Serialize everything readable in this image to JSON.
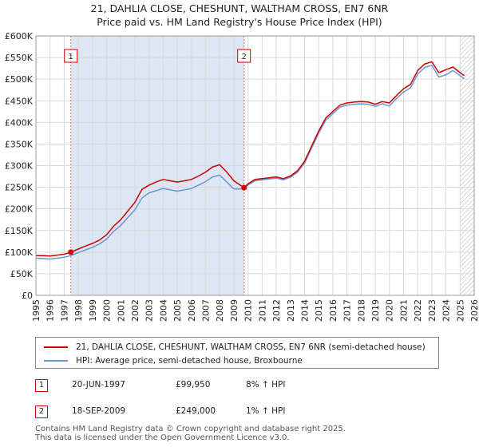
{
  "chart_data": {
    "type": "line",
    "title": "21, DAHLIA CLOSE, CHESHUNT, WALTHAM CROSS, EN7 6NR",
    "subtitle": "Price paid vs. HM Land Registry's House Price Index (HPI)",
    "xlim": [
      1995,
      2026
    ],
    "ylim": [
      0,
      600000
    ],
    "x_ticks": [
      "1995",
      "1996",
      "1997",
      "1998",
      "1999",
      "2000",
      "2001",
      "2002",
      "2003",
      "2004",
      "2005",
      "2006",
      "2007",
      "2008",
      "2009",
      "2010",
      "2011",
      "2012",
      "2013",
      "2014",
      "2015",
      "2016",
      "2017",
      "2018",
      "2019",
      "2020",
      "2021",
      "2022",
      "2023",
      "2024",
      "2025",
      "2026"
    ],
    "y_ticks": [
      {
        "value": 0,
        "label": "£0"
      },
      {
        "value": 50000,
        "label": "£50K"
      },
      {
        "value": 100000,
        "label": "£100K"
      },
      {
        "value": 150000,
        "label": "£150K"
      },
      {
        "value": 200000,
        "label": "£200K"
      },
      {
        "value": 250000,
        "label": "£250K"
      },
      {
        "value": 300000,
        "label": "£300K"
      },
      {
        "value": 350000,
        "label": "£350K"
      },
      {
        "value": 400000,
        "label": "£400K"
      },
      {
        "value": 450000,
        "label": "£450K"
      },
      {
        "value": 500000,
        "label": "£500K"
      },
      {
        "value": 550000,
        "label": "£550K"
      },
      {
        "value": 600000,
        "label": "£600K"
      }
    ],
    "shaded_range": [
      1997.47,
      2009.72
    ],
    "hatched_from": 2025.0,
    "series": [
      {
        "name": "21, DAHLIA CLOSE, CHESHUNT, WALTHAM CROSS, EN7 6NR (semi-detached house)",
        "color": "#cc0000",
        "x": [
          1995.0,
          1995.5,
          1996.0,
          1996.5,
          1997.0,
          1997.47,
          1998.0,
          1998.5,
          1999.0,
          1999.5,
          2000.0,
          2000.5,
          2001.0,
          2001.5,
          2002.0,
          2002.5,
          2003.0,
          2003.5,
          2004.0,
          2004.5,
          2005.0,
          2005.5,
          2006.0,
          2006.5,
          2007.0,
          2007.5,
          2008.0,
          2008.5,
          2009.0,
          2009.72,
          2010.0,
          2010.5,
          2011.0,
          2011.5,
          2012.0,
          2012.5,
          2013.0,
          2013.5,
          2014.0,
          2014.5,
          2015.0,
          2015.5,
          2016.0,
          2016.5,
          2017.0,
          2017.5,
          2018.0,
          2018.5,
          2019.0,
          2019.5,
          2020.0,
          2020.5,
          2021.0,
          2021.5,
          2022.0,
          2022.5,
          2023.0,
          2023.5,
          2024.0,
          2024.5,
          2025.0,
          2025.3
        ],
        "values": [
          92000,
          92000,
          91000,
          93000,
          95000,
          99950,
          107000,
          114000,
          120000,
          128000,
          140000,
          160000,
          175000,
          195000,
          215000,
          245000,
          255000,
          262000,
          268000,
          265000,
          262000,
          265000,
          268000,
          276000,
          285000,
          297000,
          302000,
          285000,
          265000,
          249000,
          258000,
          268000,
          270000,
          272000,
          274000,
          270000,
          276000,
          288000,
          310000,
          345000,
          380000,
          410000,
          425000,
          440000,
          445000,
          447000,
          448000,
          447000,
          442000,
          448000,
          445000,
          462000,
          478000,
          488000,
          520000,
          535000,
          540000,
          515000,
          522000,
          528000,
          515000,
          508000
        ]
      },
      {
        "name": "HPI: Average price, semi-detached house, Broxbourne",
        "color": "#6a96d0",
        "x": [
          1995.0,
          1995.5,
          1996.0,
          1996.5,
          1997.0,
          1997.47,
          1998.0,
          1998.5,
          1999.0,
          1999.5,
          2000.0,
          2000.5,
          2001.0,
          2001.5,
          2002.0,
          2002.5,
          2003.0,
          2003.5,
          2004.0,
          2004.5,
          2005.0,
          2005.5,
          2006.0,
          2006.5,
          2007.0,
          2007.5,
          2008.0,
          2008.5,
          2009.0,
          2009.72,
          2010.0,
          2010.5,
          2011.0,
          2011.5,
          2012.0,
          2012.5,
          2013.0,
          2013.5,
          2014.0,
          2014.5,
          2015.0,
          2015.5,
          2016.0,
          2016.5,
          2017.0,
          2017.5,
          2018.0,
          2018.5,
          2019.0,
          2019.5,
          2020.0,
          2020.5,
          2021.0,
          2021.5,
          2022.0,
          2022.5,
          2023.0,
          2023.5,
          2024.0,
          2024.5,
          2025.0,
          2025.3
        ],
        "values": [
          86000,
          85000,
          84000,
          86000,
          88000,
          92000,
          99000,
          105000,
          111000,
          119000,
          130000,
          148000,
          162000,
          180000,
          198000,
          225000,
          237000,
          242000,
          247000,
          244000,
          241000,
          244000,
          247000,
          255000,
          263000,
          274000,
          278000,
          262000,
          246000,
          246000,
          255000,
          265000,
          267000,
          269000,
          271000,
          267000,
          273000,
          285000,
          306000,
          340000,
          375000,
          405000,
          420000,
          435000,
          440000,
          442000,
          443000,
          442000,
          437000,
          443000,
          438000,
          455000,
          470000,
          480000,
          512000,
          527000,
          532000,
          505000,
          510000,
          520000,
          508000,
          501000
        ]
      }
    ],
    "sales": [
      {
        "id": "1",
        "x": 1997.47,
        "price_value": 99950,
        "date": "20-JUN-1997",
        "price": "£99,950",
        "hpi_change": "8% ↑ HPI"
      },
      {
        "id": "2",
        "x": 2009.72,
        "price_value": 249000,
        "date": "18-SEP-2009",
        "price": "£249,000",
        "hpi_change": "1% ↑ HPI"
      }
    ]
  },
  "legend": {
    "property_label": "21, DAHLIA CLOSE, CHESHUNT, WALTHAM CROSS, EN7 6NR (semi-detached house)",
    "hpi_label": "HPI: Average price, semi-detached house, Broxbourne"
  },
  "footer": {
    "line1": "Contains HM Land Registry data © Crown copyright and database right 2025.",
    "line2": "This data is licensed under the Open Government Licence v3.0."
  },
  "colors": {
    "property": "#cc0000",
    "hpi": "#6a96d0",
    "shade": "#dde6f3",
    "grid": "#d9d9d9"
  }
}
